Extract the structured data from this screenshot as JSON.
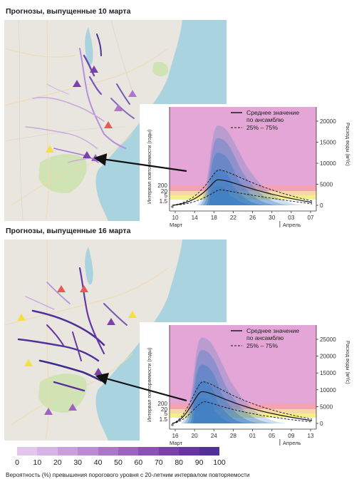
{
  "panels": [
    {
      "title": "Прогнозы, выпущенные 10 марта",
      "x_ticks": [
        "10",
        "14",
        "18",
        "22",
        "26",
        "30",
        "03",
        "07"
      ],
      "month_left": "Март",
      "month_right": "Апрель",
      "legend_mean": [
        "Среднее значение",
        "по ансамблю"
      ],
      "legend_quantile": "25% – 75%",
      "y_left_title": "Интервал повторяемости (годы)",
      "y_left_ticks": [
        "200",
        "20",
        "5",
        "1.5"
      ],
      "y_right_title": "Расход воды (м³/с)",
      "y_right_ticks": [
        "20000",
        "15000",
        "10000",
        "5000",
        "0"
      ],
      "rp_band_colors": [
        "#f4a3b2",
        "#f7d9a5",
        "#f5ef8a",
        "#ffffff"
      ],
      "background_color": "#e3a6d6"
    },
    {
      "title": "Прогнозы, выпущенные 16 марта",
      "x_ticks": [
        "16",
        "20",
        "24",
        "28",
        "01",
        "05",
        "09",
        "13"
      ],
      "month_left": "Март",
      "month_right": "Апрель",
      "legend_mean": [
        "Среднее значение",
        "по ансамблю"
      ],
      "legend_quantile": "25% – 75%",
      "y_left_title": "Интервал повторяемости (годы)",
      "y_left_ticks": [
        "200",
        "20",
        "5",
        "1.5"
      ],
      "y_right_title": "Расход воды (м³/с)",
      "y_right_ticks": [
        "25000",
        "20000",
        "15000",
        "10000",
        "5000",
        "0"
      ],
      "rp_band_colors": [
        "#f4a3b2",
        "#f7d9a5",
        "#f5ef8a",
        "#ffffff"
      ],
      "background_color": "#e3a6d6"
    }
  ],
  "colorbar": {
    "labels": [
      "0",
      "10",
      "20",
      "30",
      "40",
      "50",
      "60",
      "70",
      "80",
      "90",
      "100"
    ],
    "colors": [
      "#e2c6ec",
      "#d7b4e6",
      "#c9a0dd",
      "#bb8bd4",
      "#ad76cb",
      "#9f62c2",
      "#8d50b8",
      "#7a41ad",
      "#6736a4",
      "#52309a"
    ]
  },
  "caption": "Вероятность (%) превышения порогового уровня с 20-летним интервалом повторяемости",
  "colors": {
    "sea": "#a9d3df",
    "land": "#e8e6df",
    "park": "#cfe3b5",
    "river_low": "#c9a8e0",
    "river_high": "#3c2c8c"
  }
}
